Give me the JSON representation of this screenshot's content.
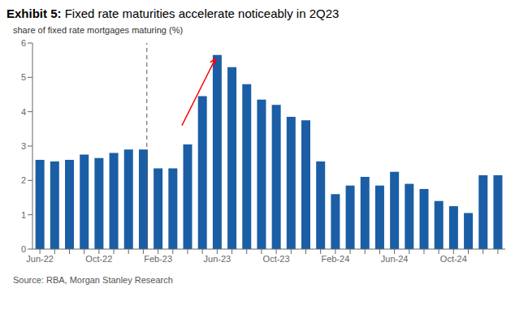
{
  "chart_data": {
    "type": "bar",
    "title": "Exhibit 5: Fixed rate maturities accelerate noticeably in 2Q23",
    "y_label": "share of fixed rate mortgages maturing (%)",
    "categories": [
      "Jun-22",
      null,
      null,
      null,
      "Oct-22",
      null,
      null,
      null,
      "Feb-23",
      null,
      null,
      null,
      "Jun-23",
      null,
      null,
      null,
      "Oct-23",
      null,
      null,
      null,
      "Feb-24",
      null,
      null,
      null,
      "Jun-24",
      null,
      null,
      null,
      "Oct-24",
      null,
      null,
      null
    ],
    "values": [
      2.6,
      2.55,
      2.6,
      2.75,
      2.65,
      2.8,
      2.9,
      2.9,
      2.35,
      2.35,
      3.05,
      4.45,
      5.65,
      5.3,
      4.8,
      4.35,
      4.2,
      3.85,
      3.75,
      2.55,
      1.6,
      1.85,
      2.1,
      1.85,
      2.25,
      1.9,
      1.75,
      1.4,
      1.25,
      1.05,
      2.15,
      2.15
    ],
    "color": "#1b5ea6",
    "ylim": [
      0,
      6
    ],
    "yticks": [
      0,
      1,
      2,
      3,
      4,
      5,
      6
    ],
    "grid": false,
    "annotations": [
      {
        "type": "vline",
        "x": 7.5,
        "line_style": "dashed",
        "color": "#555555"
      },
      {
        "type": "arrow",
        "from": [
          9.8,
          3.6
        ],
        "to": [
          12.0,
          5.55
        ],
        "color": "red"
      },
      {
        "type": "text",
        "text": "Source: RBA, Morgan Stanley Research"
      }
    ]
  }
}
